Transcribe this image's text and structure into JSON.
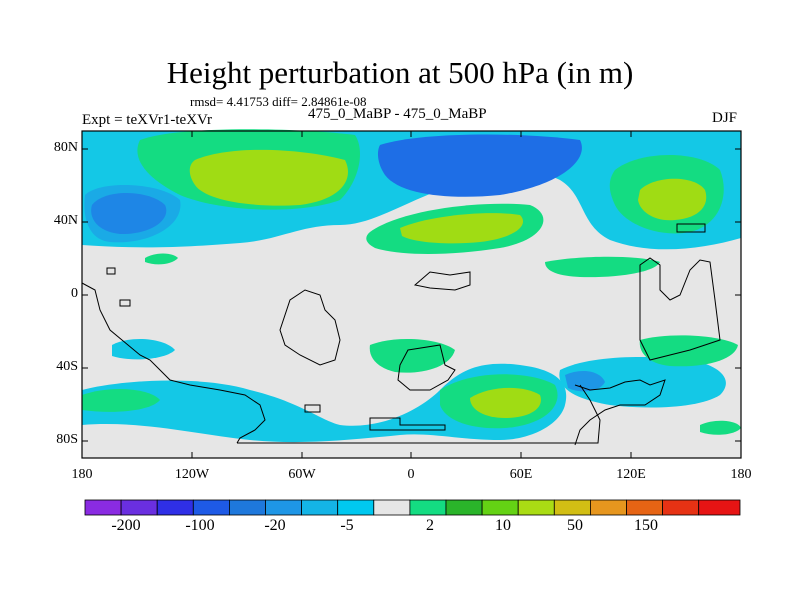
{
  "title": "Height perturbation at 500 hPa (in m)",
  "stats": "rmsd= 4.41753 diff= 2.84861e-08",
  "left_label": "Expt = teXVr1-teXVr",
  "center_label": "475_0_MaBP - 475_0_MaBP",
  "right_label": "DJF",
  "axes": {
    "y_ticks": [
      "80N",
      "40N",
      "0",
      "40S",
      "80S"
    ],
    "x_ticks": [
      "180",
      "120W",
      "60W",
      "0",
      "60E",
      "120E",
      "180"
    ]
  },
  "colorbar": {
    "labels": [
      "-200",
      "-100",
      "-20",
      "-5",
      "2",
      "10",
      "50",
      "150"
    ],
    "colors": [
      "#8a2be2",
      "#6a2fe0",
      "#2f2fe6",
      "#1e5ae6",
      "#1e78dc",
      "#1e96e6",
      "#14b4e6",
      "#00c8f0",
      "#e6e6e6",
      "#14dc82",
      "#2ab42a",
      "#64d214",
      "#aadc14",
      "#d2be14",
      "#e6961e",
      "#e66414",
      "#e63214",
      "#e61414"
    ]
  },
  "colors": {
    "background": "#e6e6e6",
    "light_blue": "#14c8e6",
    "mid_blue": "#1e96e6",
    "dark_blue": "#1e6ee6",
    "light_green": "#14dc82",
    "yellow_green": "#a0dc14"
  }
}
